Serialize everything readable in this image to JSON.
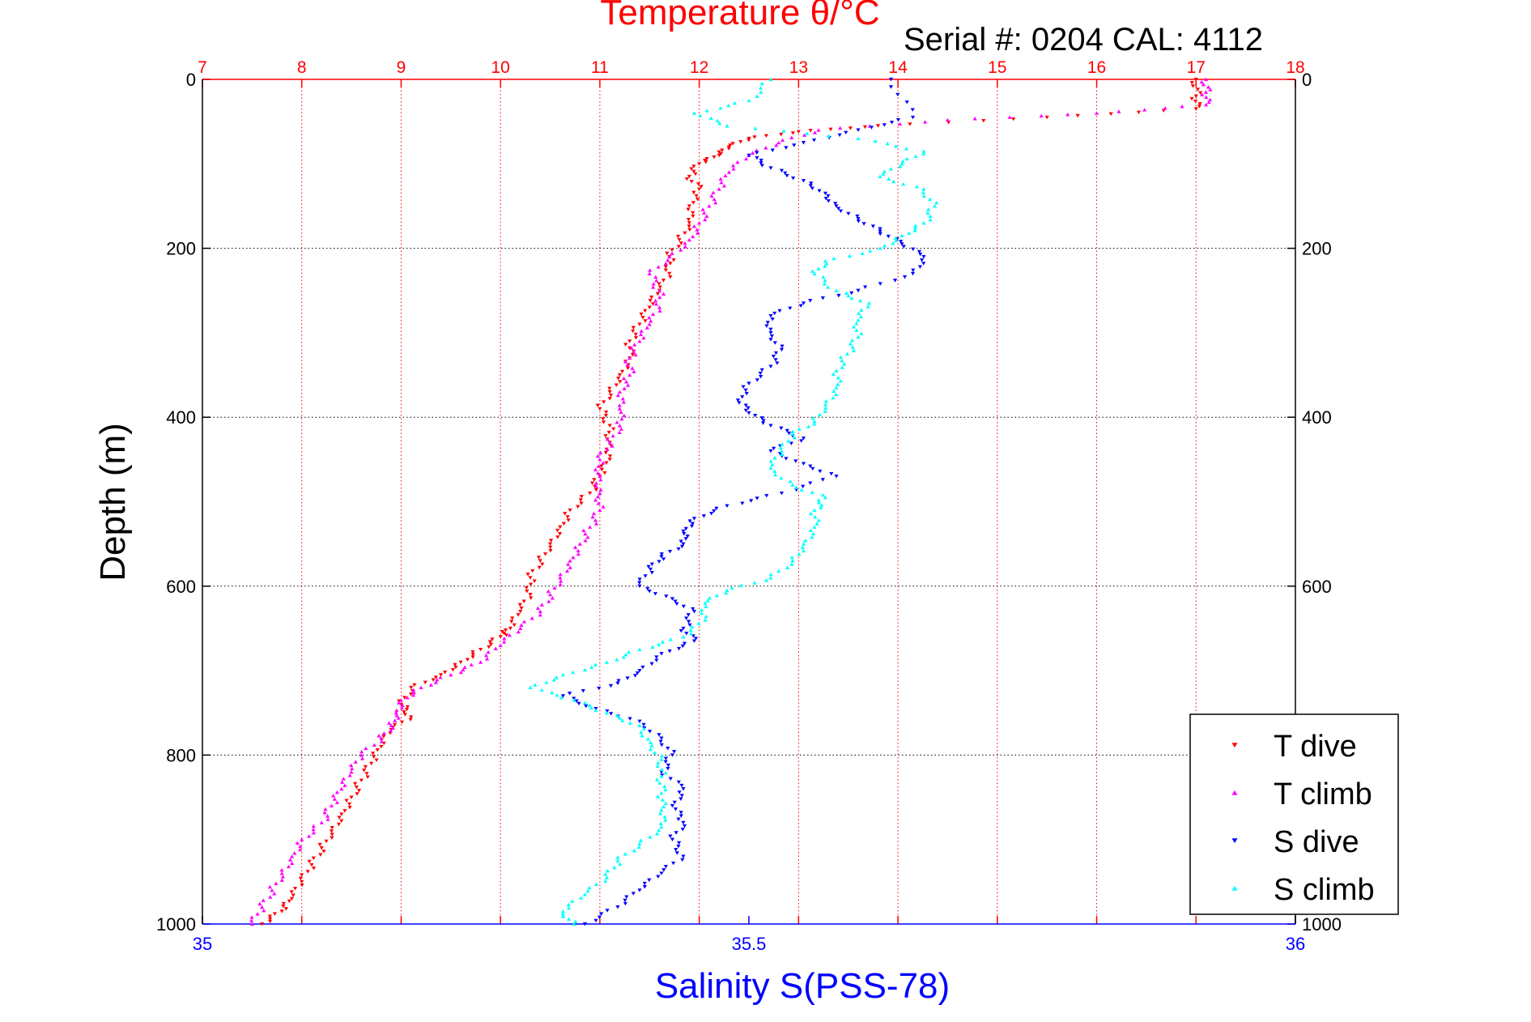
{
  "chart_data": {
    "type": "scatter",
    "title": "Temperature θ/°C",
    "subtitle": "Serial #: 0204  CAL: 4112",
    "xlabel": "Salinity S(PSS-78)",
    "ylabel": "Depth (m)",
    "temperature_axis": {
      "lim": [
        7,
        18
      ],
      "ticks": [
        "7",
        "8",
        "9",
        "10",
        "11",
        "12",
        "13",
        "14",
        "15",
        "16",
        "17",
        "18"
      ]
    },
    "salinity_axis": {
      "lim": [
        35,
        36
      ],
      "ticks": [
        "35",
        "35.5",
        "36"
      ]
    },
    "depth_axis": {
      "lim": [
        0,
        1000
      ],
      "reversed": true,
      "ticks": [
        "0",
        "200",
        "400",
        "600",
        "800",
        "1000"
      ]
    },
    "grid": true,
    "legend_position": "bottom-right",
    "colors": {
      "temperature_axis": "#ff0000",
      "salinity_axis": "#0000ff",
      "depth_axis": "#000000"
    },
    "series": [
      {
        "name": "T dive",
        "axis": "temperature",
        "marker": "triangle-down",
        "color": "#ff0000",
        "points": [
          [
            17.0,
            0
          ],
          [
            17.0,
            20
          ],
          [
            17.0,
            35
          ],
          [
            15.5,
            45
          ],
          [
            13.8,
            55
          ],
          [
            13.0,
            62
          ],
          [
            12.5,
            70
          ],
          [
            12.3,
            80
          ],
          [
            12.2,
            90
          ],
          [
            12.0,
            100
          ],
          [
            11.9,
            115
          ],
          [
            12.0,
            130
          ],
          [
            11.9,
            150
          ],
          [
            11.9,
            170
          ],
          [
            11.8,
            190
          ],
          [
            11.7,
            210
          ],
          [
            11.7,
            230
          ],
          [
            11.6,
            250
          ],
          [
            11.5,
            270
          ],
          [
            11.4,
            290
          ],
          [
            11.3,
            310
          ],
          [
            11.3,
            330
          ],
          [
            11.2,
            350
          ],
          [
            11.1,
            370
          ],
          [
            11.0,
            390
          ],
          [
            11.1,
            410
          ],
          [
            11.1,
            430
          ],
          [
            11.1,
            450
          ],
          [
            11.0,
            470
          ],
          [
            10.9,
            490
          ],
          [
            10.7,
            510
          ],
          [
            10.6,
            530
          ],
          [
            10.5,
            550
          ],
          [
            10.4,
            570
          ],
          [
            10.3,
            590
          ],
          [
            10.3,
            610
          ],
          [
            10.2,
            630
          ],
          [
            10.1,
            650
          ],
          [
            10.0,
            660
          ],
          [
            9.8,
            675
          ],
          [
            9.6,
            690
          ],
          [
            9.4,
            705
          ],
          [
            9.1,
            720
          ],
          [
            9.0,
            740
          ],
          [
            9.1,
            755
          ],
          [
            8.9,
            770
          ],
          [
            8.8,
            790
          ],
          [
            8.7,
            810
          ],
          [
            8.6,
            830
          ],
          [
            8.5,
            850
          ],
          [
            8.4,
            870
          ],
          [
            8.3,
            890
          ],
          [
            8.2,
            910
          ],
          [
            8.1,
            930
          ],
          [
            8.0,
            950
          ],
          [
            7.9,
            970
          ],
          [
            7.8,
            985
          ],
          [
            7.6,
            1000
          ]
        ]
      },
      {
        "name": "T climb",
        "axis": "temperature",
        "marker": "triangle-up",
        "color": "#ff00ff",
        "points": [
          [
            17.1,
            0
          ],
          [
            17.1,
            15
          ],
          [
            17.1,
            30
          ],
          [
            16.0,
            40
          ],
          [
            14.5,
            48
          ],
          [
            13.2,
            60
          ],
          [
            12.8,
            75
          ],
          [
            12.5,
            90
          ],
          [
            12.3,
            110
          ],
          [
            12.2,
            130
          ],
          [
            12.1,
            150
          ],
          [
            12.0,
            170
          ],
          [
            11.9,
            190
          ],
          [
            11.7,
            210
          ],
          [
            11.5,
            230
          ],
          [
            11.6,
            250
          ],
          [
            11.6,
            270
          ],
          [
            11.5,
            290
          ],
          [
            11.4,
            310
          ],
          [
            11.3,
            330
          ],
          [
            11.3,
            350
          ],
          [
            11.2,
            370
          ],
          [
            11.2,
            390
          ],
          [
            11.2,
            410
          ],
          [
            11.1,
            430
          ],
          [
            11.0,
            450
          ],
          [
            11.0,
            470
          ],
          [
            11.0,
            490
          ],
          [
            11.0,
            510
          ],
          [
            10.9,
            530
          ],
          [
            10.8,
            550
          ],
          [
            10.7,
            570
          ],
          [
            10.6,
            590
          ],
          [
            10.5,
            610
          ],
          [
            10.4,
            630
          ],
          [
            10.2,
            650
          ],
          [
            10.0,
            670
          ],
          [
            9.8,
            690
          ],
          [
            9.5,
            705
          ],
          [
            9.2,
            720
          ],
          [
            9.0,
            735
          ],
          [
            8.95,
            750
          ],
          [
            8.9,
            765
          ],
          [
            8.8,
            780
          ],
          [
            8.6,
            800
          ],
          [
            8.5,
            820
          ],
          [
            8.4,
            840
          ],
          [
            8.3,
            860
          ],
          [
            8.2,
            880
          ],
          [
            8.0,
            900
          ],
          [
            7.9,
            920
          ],
          [
            7.8,
            940
          ],
          [
            7.7,
            960
          ],
          [
            7.6,
            980
          ],
          [
            7.5,
            1000
          ]
        ]
      },
      {
        "name": "S dive",
        "axis": "salinity",
        "marker": "triangle-down",
        "color": "#0000ff",
        "points": [
          [
            35.63,
            0
          ],
          [
            35.65,
            45
          ],
          [
            35.6,
            60
          ],
          [
            35.55,
            75
          ],
          [
            35.5,
            90
          ],
          [
            35.52,
            105
          ],
          [
            35.55,
            120
          ],
          [
            35.57,
            135
          ],
          [
            35.58,
            150
          ],
          [
            35.6,
            165
          ],
          [
            35.62,
            180
          ],
          [
            35.64,
            195
          ],
          [
            35.66,
            210
          ],
          [
            35.65,
            230
          ],
          [
            35.6,
            250
          ],
          [
            35.55,
            265
          ],
          [
            35.52,
            280
          ],
          [
            35.52,
            300
          ],
          [
            35.53,
            320
          ],
          [
            35.52,
            340
          ],
          [
            35.5,
            360
          ],
          [
            35.49,
            380
          ],
          [
            35.5,
            395
          ],
          [
            35.52,
            410
          ],
          [
            35.55,
            425
          ],
          [
            35.52,
            440
          ],
          [
            35.55,
            455
          ],
          [
            35.58,
            470
          ],
          [
            35.53,
            490
          ],
          [
            35.48,
            505
          ],
          [
            35.45,
            520
          ],
          [
            35.44,
            535
          ],
          [
            35.44,
            550
          ],
          [
            35.42,
            565
          ],
          [
            35.41,
            580
          ],
          [
            35.4,
            600
          ],
          [
            35.43,
            615
          ],
          [
            35.45,
            630
          ],
          [
            35.44,
            650
          ],
          [
            35.45,
            665
          ],
          [
            35.42,
            680
          ],
          [
            35.4,
            700
          ],
          [
            35.38,
            715
          ],
          [
            35.33,
            730
          ],
          [
            35.36,
            745
          ],
          [
            35.4,
            760
          ],
          [
            35.42,
            780
          ],
          [
            35.43,
            800
          ],
          [
            35.42,
            820
          ],
          [
            35.44,
            840
          ],
          [
            35.43,
            860
          ],
          [
            35.44,
            880
          ],
          [
            35.43,
            900
          ],
          [
            35.44,
            920
          ],
          [
            35.42,
            940
          ],
          [
            35.4,
            960
          ],
          [
            35.38,
            980
          ],
          [
            35.35,
            1000
          ]
        ]
      },
      {
        "name": "S climb",
        "axis": "salinity",
        "marker": "triangle-up",
        "color": "#00ffff",
        "points": [
          [
            35.52,
            0
          ],
          [
            35.5,
            25
          ],
          [
            35.45,
            40
          ],
          [
            35.48,
            55
          ],
          [
            35.6,
            70
          ],
          [
            35.66,
            85
          ],
          [
            35.64,
            100
          ],
          [
            35.62,
            115
          ],
          [
            35.66,
            130
          ],
          [
            35.67,
            150
          ],
          [
            35.66,
            170
          ],
          [
            35.64,
            185
          ],
          [
            35.62,
            200
          ],
          [
            35.57,
            215
          ],
          [
            35.56,
            230
          ],
          [
            35.58,
            250
          ],
          [
            35.61,
            265
          ],
          [
            35.6,
            285
          ],
          [
            35.6,
            305
          ],
          [
            35.59,
            325
          ],
          [
            35.58,
            345
          ],
          [
            35.58,
            365
          ],
          [
            35.57,
            385
          ],
          [
            35.56,
            405
          ],
          [
            35.54,
            420
          ],
          [
            35.53,
            440
          ],
          [
            35.52,
            460
          ],
          [
            35.54,
            480
          ],
          [
            35.57,
            495
          ],
          [
            35.56,
            510
          ],
          [
            35.56,
            530
          ],
          [
            35.55,
            550
          ],
          [
            35.54,
            570
          ],
          [
            35.52,
            590
          ],
          [
            35.48,
            605
          ],
          [
            35.46,
            620
          ],
          [
            35.46,
            640
          ],
          [
            35.44,
            660
          ],
          [
            35.4,
            675
          ],
          [
            35.37,
            690
          ],
          [
            35.33,
            705
          ],
          [
            35.3,
            720
          ],
          [
            35.34,
            735
          ],
          [
            35.37,
            750
          ],
          [
            35.4,
            765
          ],
          [
            35.41,
            785
          ],
          [
            35.42,
            805
          ],
          [
            35.42,
            825
          ],
          [
            35.42,
            845
          ],
          [
            35.42,
            865
          ],
          [
            35.42,
            885
          ],
          [
            35.4,
            905
          ],
          [
            35.38,
            925
          ],
          [
            35.37,
            945
          ],
          [
            35.35,
            965
          ],
          [
            35.33,
            985
          ],
          [
            35.34,
            1000
          ]
        ]
      }
    ]
  }
}
